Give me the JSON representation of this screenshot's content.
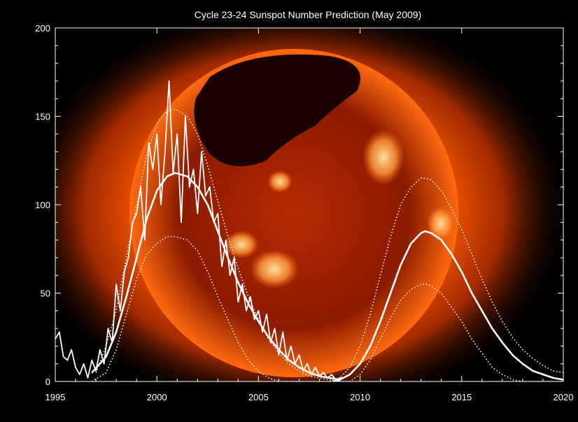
{
  "chart_data": {
    "type": "line",
    "title": "Cycle 23-24 Sunspot Number Prediction (May 2009)",
    "xlabel": "",
    "ylabel": "",
    "xlim": [
      1995,
      2020
    ],
    "ylim": [
      0,
      200
    ],
    "x_ticks": [
      1995,
      2000,
      2005,
      2010,
      2015,
      2020
    ],
    "y_ticks": [
      0,
      50,
      100,
      150,
      200
    ],
    "grid": false,
    "background": "solar X-ray image (orange/red sun disk)",
    "colors": {
      "lines": "#ffffff",
      "sun_core": "#5a0a00",
      "sun_bright": "#ff9a3c",
      "corona": "#ff5a00"
    },
    "series": [
      {
        "style": "jagged-solid",
        "x": [
          1995.0,
          1995.2,
          1995.4,
          1995.6,
          1995.8,
          1996.0,
          1996.2,
          1996.4,
          1996.6,
          1996.8,
          1997.0,
          1997.2,
          1997.4,
          1997.6,
          1997.8,
          1998.0,
          1998.2,
          1998.4,
          1998.6,
          1998.8,
          1999.0,
          1999.2,
          1999.4,
          1999.6,
          1999.8,
          2000.0,
          2000.2,
          2000.4,
          2000.6,
          2000.8,
          2001.0,
          2001.2,
          2001.4,
          2001.6,
          2001.8,
          2002.0,
          2002.2,
          2002.4,
          2002.6,
          2002.8,
          2003.0,
          2003.2,
          2003.4,
          2003.6,
          2003.8,
          2004.0,
          2004.2,
          2004.4,
          2004.6,
          2004.8,
          2005.0,
          2005.2,
          2005.4,
          2005.6,
          2005.8,
          2006.0,
          2006.2,
          2006.4,
          2006.6,
          2006.8,
          2007.0,
          2007.2,
          2007.4,
          2007.6,
          2007.8,
          2008.0,
          2008.2,
          2008.4,
          2008.6,
          2008.8,
          2009.0,
          2009.2
        ],
        "y": [
          24,
          28,
          14,
          12,
          18,
          8,
          4,
          10,
          2,
          12,
          6,
          18,
          10,
          30,
          22,
          55,
          40,
          62,
          70,
          90,
          95,
          110,
          80,
          135,
          120,
          140,
          100,
          130,
          170,
          118,
          140,
          90,
          150,
          110,
          120,
          95,
          130,
          105,
          110,
          90,
          95,
          65,
          80,
          60,
          70,
          45,
          55,
          40,
          48,
          35,
          40,
          28,
          38,
          22,
          30,
          15,
          28,
          12,
          20,
          10,
          15,
          6,
          10,
          4,
          8,
          3,
          5,
          2,
          4,
          1,
          2,
          2
        ]
      },
      {
        "style": "smooth-solid",
        "x": [
          1996.8,
          1997.5,
          1998.0,
          1998.5,
          1999.0,
          1999.5,
          2000.0,
          2000.5,
          2000.9,
          2001.5,
          2002.0,
          2002.5,
          2003.0,
          2003.5,
          2004.0,
          2004.5,
          2005.0,
          2005.5,
          2006.0,
          2006.5,
          2007.0,
          2007.5,
          2008.0,
          2008.5,
          2009.0
        ],
        "y": [
          5,
          14,
          28,
          48,
          70,
          92,
          108,
          116,
          118,
          116,
          110,
          100,
          85,
          70,
          56,
          44,
          34,
          25,
          18,
          12,
          8,
          5,
          3,
          2,
          1
        ]
      },
      {
        "style": "dotted-upper",
        "x": [
          1997.0,
          1997.5,
          1998.0,
          1998.5,
          1999.0,
          1999.5,
          2000.0,
          2000.5,
          2000.9,
          2001.5,
          2002.0,
          2002.5,
          2003.0,
          2003.5,
          2004.0,
          2004.5,
          2005.0,
          2005.5,
          2006.0,
          2006.5,
          2007.0,
          2007.5,
          2008.0,
          2008.5,
          2009.0
        ],
        "y": [
          5,
          20,
          40,
          70,
          100,
          128,
          146,
          153,
          154,
          150,
          140,
          122,
          102,
          82,
          64,
          48,
          35,
          24,
          16,
          10,
          6,
          3,
          2,
          1,
          0
        ]
      },
      {
        "style": "dotted-lower",
        "x": [
          1996.8,
          1997.5,
          1998.0,
          1998.5,
          1999.0,
          1999.5,
          2000.0,
          2000.5,
          2000.9,
          2001.5,
          2002.0,
          2002.5,
          2003.0,
          2003.5,
          2004.0,
          2004.5,
          2005.0,
          2005.5,
          2006.0,
          2006.5,
          2007.0
        ],
        "y": [
          0,
          5,
          18,
          38,
          58,
          72,
          78,
          82,
          82,
          80,
          74,
          62,
          48,
          35,
          22,
          12,
          6,
          2,
          0,
          0,
          0
        ]
      },
      {
        "style": "smooth-solid",
        "x": [
          2008.7,
          2009.0,
          2009.5,
          2010.0,
          2010.5,
          2011.0,
          2011.5,
          2012.0,
          2012.5,
          2013.0,
          2013.2,
          2013.5,
          2014.0,
          2014.5,
          2015.0,
          2015.5,
          2016.0,
          2016.5,
          2017.0,
          2017.5,
          2018.0,
          2018.5,
          2019.0,
          2019.5,
          2020.0
        ],
        "y": [
          0,
          1,
          4,
          10,
          20,
          34,
          50,
          66,
          78,
          84,
          85,
          84,
          80,
          72,
          62,
          50,
          40,
          30,
          22,
          15,
          10,
          6,
          4,
          2,
          1
        ]
      },
      {
        "style": "dotted-upper",
        "x": [
          2008.5,
          2009.0,
          2009.5,
          2010.0,
          2010.5,
          2011.0,
          2011.5,
          2012.0,
          2012.5,
          2013.0,
          2013.2,
          2013.5,
          2014.0,
          2014.5,
          2015.0,
          2015.5,
          2016.0,
          2016.5,
          2017.0,
          2017.5,
          2018.0,
          2018.5,
          2019.0,
          2019.5,
          2020.0
        ],
        "y": [
          0,
          2,
          8,
          20,
          38,
          60,
          82,
          100,
          110,
          115,
          115,
          114,
          108,
          98,
          86,
          72,
          58,
          45,
          34,
          25,
          18,
          13,
          9,
          6,
          5
        ]
      },
      {
        "style": "dotted-lower",
        "x": [
          2009.0,
          2009.5,
          2010.0,
          2010.5,
          2011.0,
          2011.5,
          2012.0,
          2012.5,
          2013.0,
          2013.3,
          2013.5,
          2014.0,
          2014.5,
          2015.0,
          2015.5,
          2016.0,
          2016.5,
          2017.0,
          2017.5,
          2018.0,
          2018.5,
          2019.0,
          2020.0
        ],
        "y": [
          0,
          0,
          4,
          12,
          24,
          36,
          46,
          52,
          55,
          55,
          54,
          50,
          42,
          34,
          24,
          16,
          8,
          4,
          1,
          0,
          0,
          0,
          0
        ]
      }
    ]
  }
}
